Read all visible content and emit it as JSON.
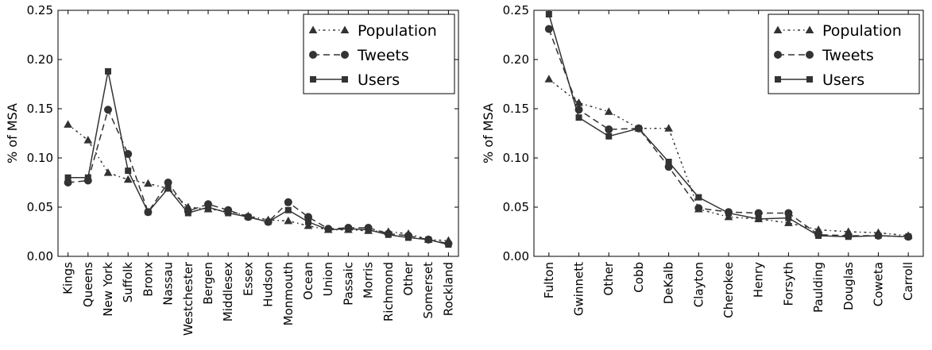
{
  "chart_data": [
    {
      "type": "line",
      "title": "",
      "xlabel": "",
      "ylabel": "% of MSA",
      "ylim": [
        0,
        0.25
      ],
      "yticks": [
        "0.00",
        "0.05",
        "0.10",
        "0.15",
        "0.20",
        "0.25"
      ],
      "grid": false,
      "legend_placement": "top-right",
      "categories": [
        "Kings",
        "Queens",
        "New York",
        "Suffolk",
        "Bronx",
        "Nassau",
        "Westchester",
        "Bergen",
        "Middlesex",
        "Essex",
        "Hudson",
        "Monmouth",
        "Ocean",
        "Union",
        "Passaic",
        "Morris",
        "Richmond",
        "Other",
        "Somerset",
        "Rockland"
      ],
      "series": [
        {
          "name": "Population",
          "marker": "triangle",
          "dash": "dashdot",
          "values": [
            0.134,
            0.118,
            0.085,
            0.078,
            0.074,
            0.069,
            0.05,
            0.048,
            0.046,
            0.041,
            0.037,
            0.036,
            0.031,
            0.027,
            0.027,
            0.026,
            0.025,
            0.023,
            0.017,
            0.016
          ]
        },
        {
          "name": "Tweets",
          "marker": "circle",
          "dash": "dashed",
          "values": [
            0.075,
            0.077,
            0.149,
            0.104,
            0.045,
            0.075,
            0.046,
            0.053,
            0.047,
            0.04,
            0.035,
            0.055,
            0.04,
            0.028,
            0.029,
            0.029,
            0.023,
            0.021,
            0.017,
            0.013
          ]
        },
        {
          "name": "Users",
          "marker": "square",
          "dash": "solid",
          "values": [
            0.08,
            0.08,
            0.188,
            0.087,
            0.045,
            0.069,
            0.044,
            0.05,
            0.044,
            0.04,
            0.035,
            0.047,
            0.035,
            0.027,
            0.028,
            0.027,
            0.022,
            0.019,
            0.017,
            0.012
          ]
        }
      ]
    },
    {
      "type": "line",
      "title": "",
      "xlabel": "",
      "ylabel": "% of MSA",
      "ylim": [
        0,
        0.25
      ],
      "yticks": [
        "0.00",
        "0.05",
        "0.10",
        "0.15",
        "0.20",
        "0.25"
      ],
      "grid": false,
      "legend_placement": "top-right",
      "categories": [
        "Fulton",
        "Gwinnett",
        "Other",
        "Cobb",
        "DeKalb",
        "Clayton",
        "Cherokee",
        "Henry",
        "Forsyth",
        "Paulding",
        "Douglas",
        "Coweta",
        "Carroll"
      ],
      "series": [
        {
          "name": "Population",
          "marker": "triangle",
          "dash": "dashdot",
          "values": [
            0.18,
            0.156,
            0.147,
            0.13,
            0.13,
            0.048,
            0.04,
            0.038,
            0.034,
            0.027,
            0.025,
            0.024,
            0.021
          ]
        },
        {
          "name": "Tweets",
          "marker": "circle",
          "dash": "dashed",
          "values": [
            0.231,
            0.149,
            0.129,
            0.13,
            0.091,
            0.049,
            0.045,
            0.044,
            0.044,
            0.022,
            0.021,
            0.021,
            0.02
          ]
        },
        {
          "name": "Users",
          "marker": "square",
          "dash": "solid",
          "values": [
            0.246,
            0.141,
            0.122,
            0.13,
            0.096,
            0.06,
            0.044,
            0.038,
            0.039,
            0.021,
            0.02,
            0.021,
            0.02
          ]
        }
      ]
    }
  ]
}
